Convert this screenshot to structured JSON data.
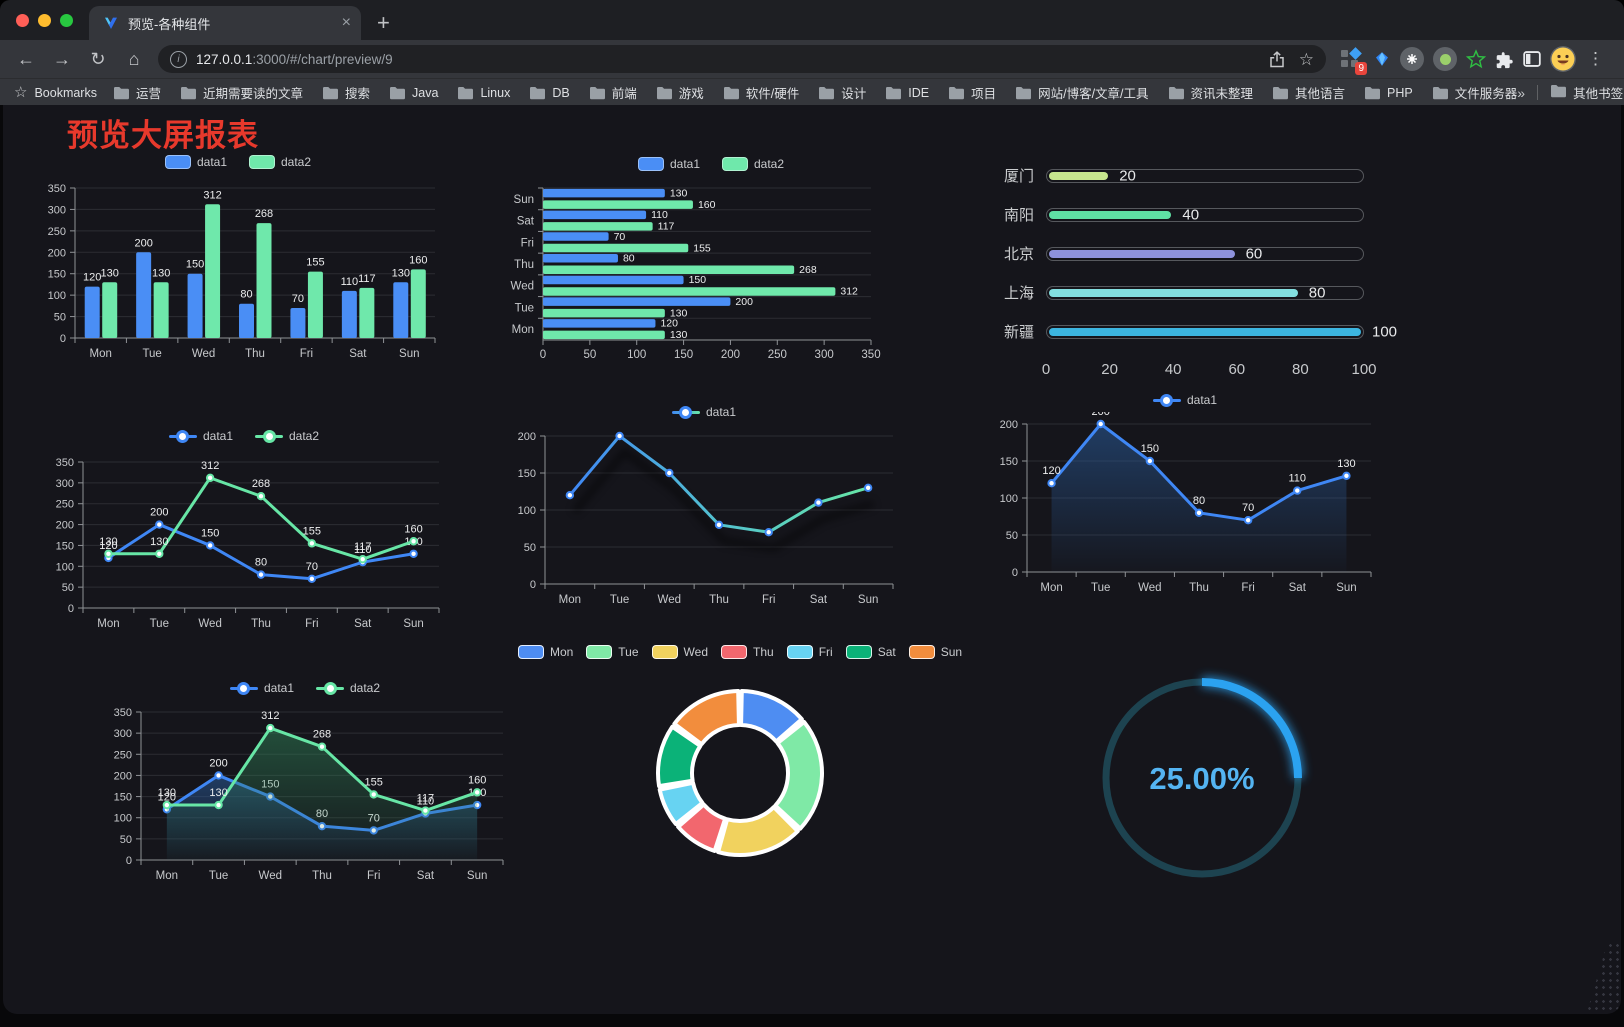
{
  "window": {
    "tab_title": "预览-各种组件",
    "tab_close": "×",
    "new_tab": "+",
    "nav": {
      "back": "←",
      "forward": "→",
      "reload": "↻",
      "home": "⌂"
    },
    "info": "i",
    "url_host": "127.0.0.1",
    "url_path": ":3000/#/chart/preview/9",
    "star": "☆",
    "extensions_badge": "9",
    "menu": "⋮"
  },
  "bookmarks_bar": {
    "label": "Bookmarks",
    "folders": [
      "运营",
      "近期需要读的文章",
      "搜索",
      "Java",
      "Linux",
      "DB",
      "前端",
      "游戏",
      "软件/硬件",
      "设计",
      "IDE",
      "项目",
      "网站/博客/文章/工具",
      "资讯未整理",
      "其他语言",
      "PHP",
      "文件服务器"
    ],
    "overflow": "»",
    "other_bookmarks": "其他书签"
  },
  "page": {
    "title": "预览大屏报表",
    "title_color": "#e7392c",
    "background": "#15151b"
  },
  "chart_data": [
    {
      "id": "bar-vertical",
      "type": "bar",
      "categories": [
        "Mon",
        "Tue",
        "Wed",
        "Thu",
        "Fri",
        "Sat",
        "Sun"
      ],
      "ylim": [
        0,
        350
      ],
      "ytick": 50,
      "grid": true,
      "legend_position": "top",
      "legend_marker": "rect",
      "series": [
        {
          "name": "data1",
          "color": "#4a8ef5",
          "values": [
            120,
            200,
            150,
            80,
            70,
            110,
            130
          ]
        },
        {
          "name": "data2",
          "color": "#6fe8ab",
          "values": [
            130,
            130,
            312,
            268,
            155,
            117,
            160
          ]
        }
      ]
    },
    {
      "id": "bar-horizontal",
      "type": "hbar",
      "categories": [
        "Mon",
        "Tue",
        "Wed",
        "Thu",
        "Fri",
        "Sat",
        "Sun"
      ],
      "xlim": [
        0,
        350
      ],
      "xtick": 50,
      "legend_position": "top",
      "legend_marker": "rect",
      "series": [
        {
          "name": "data1",
          "color": "#4a8ef5",
          "values": [
            120,
            200,
            150,
            80,
            70,
            110,
            130
          ]
        },
        {
          "name": "data2",
          "color": "#6fe8ab",
          "values": [
            130,
            130,
            312,
            268,
            155,
            117,
            160
          ]
        }
      ]
    },
    {
      "id": "progress",
      "type": "bar",
      "subtype": "progress",
      "max": 100,
      "axis_ticks": [
        0,
        20,
        40,
        60,
        80,
        100
      ],
      "items": [
        {
          "label": "厦门",
          "value": 20,
          "color": "#c7e68e"
        },
        {
          "label": "南阳",
          "value": 40,
          "color": "#5fe0a4"
        },
        {
          "label": "北京",
          "value": 60,
          "color": "#8e92dd"
        },
        {
          "label": "上海",
          "value": 80,
          "color": "#83dfe0"
        },
        {
          "label": "新疆",
          "value": 100,
          "color": "#3cb5e0"
        }
      ]
    },
    {
      "id": "line-basic",
      "type": "line",
      "labels": true,
      "categories": [
        "Mon",
        "Tue",
        "Wed",
        "Thu",
        "Fri",
        "Sat",
        "Sun"
      ],
      "ylim": [
        0,
        350
      ],
      "ytick": 50,
      "legend_position": "top",
      "legend_marker": "line",
      "series": [
        {
          "name": "data1",
          "color": "#3f87f5",
          "values": [
            120,
            200,
            150,
            80,
            70,
            110,
            130
          ]
        },
        {
          "name": "data2",
          "color": "#67e6a6",
          "values": [
            130,
            130,
            312,
            268,
            155,
            117,
            160
          ]
        }
      ]
    },
    {
      "id": "line-gradient",
      "type": "line",
      "labels": false,
      "shadow": true,
      "categories": [
        "Mon",
        "Tue",
        "Wed",
        "Thu",
        "Fri",
        "Sat",
        "Sun"
      ],
      "ylim": [
        0,
        200
      ],
      "ytick": 50,
      "legend_position": "top",
      "legend_marker": "line",
      "series": [
        {
          "name": "data1",
          "colors": [
            "#3f87f5",
            "#53c2cf",
            "#67e6a6"
          ],
          "values": [
            120,
            200,
            150,
            80,
            70,
            110,
            130
          ]
        }
      ]
    },
    {
      "id": "area-single",
      "type": "line",
      "labels": true,
      "categories": [
        "Mon",
        "Tue",
        "Wed",
        "Thu",
        "Fri",
        "Sat",
        "Sun"
      ],
      "ylim": [
        0,
        200
      ],
      "ytick": 50,
      "legend_position": "top",
      "legend_marker": "line",
      "series": [
        {
          "name": "data1",
          "color": "#3f87f5",
          "area": true,
          "area_color": "#2a5d9e",
          "values": [
            120,
            200,
            150,
            80,
            70,
            110,
            130
          ]
        }
      ]
    },
    {
      "id": "area-double",
      "type": "line",
      "labels": true,
      "categories": [
        "Mon",
        "Tue",
        "Wed",
        "Thu",
        "Fri",
        "Sat",
        "Sun"
      ],
      "ylim": [
        0,
        350
      ],
      "ytick": 50,
      "legend_position": "top",
      "legend_marker": "line",
      "series": [
        {
          "name": "data1",
          "color": "#3f87f5",
          "area": true,
          "area_color": "#2a5d9e",
          "values": [
            120,
            200,
            150,
            80,
            70,
            110,
            130
          ]
        },
        {
          "name": "data2",
          "color": "#67e6a6",
          "area": true,
          "area_color": "#2e7d54",
          "values": [
            130,
            130,
            312,
            268,
            155,
            117,
            160
          ]
        }
      ]
    },
    {
      "id": "pie",
      "type": "pie",
      "inner_radius": 48,
      "outer_radius": 82,
      "legend_position": "top",
      "items": [
        {
          "label": "Mon",
          "value": 120,
          "color": "#4e8df2"
        },
        {
          "label": "Tue",
          "value": 200,
          "color": "#7fe9a6"
        },
        {
          "label": "Wed",
          "value": 150,
          "color": "#f1d25e"
        },
        {
          "label": "Thu",
          "value": 80,
          "color": "#f2676e"
        },
        {
          "label": "Fri",
          "value": 70,
          "color": "#67d3f2"
        },
        {
          "label": "Sat",
          "value": 110,
          "color": "#0bb278"
        },
        {
          "label": "Sun",
          "value": 130,
          "color": "#f28d3d"
        }
      ]
    },
    {
      "id": "gauge",
      "type": "gauge",
      "value": 25,
      "display": "25.00%",
      "color": "#2ba2f0",
      "track_color": "#1d4350",
      "text_color": "#54b4f2"
    }
  ]
}
